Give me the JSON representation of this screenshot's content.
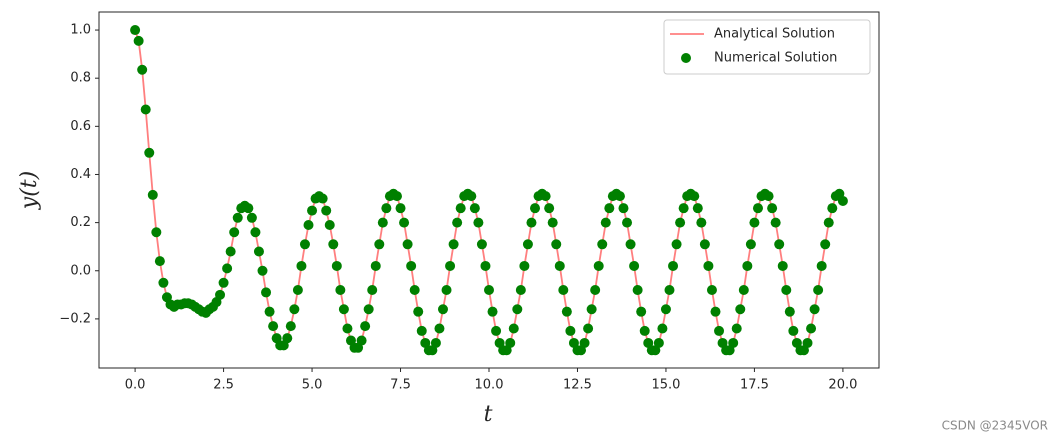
{
  "chart_data": {
    "type": "line",
    "x_label": "t",
    "y_label": "y(t)",
    "x": [
      0,
      0.1,
      0.2,
      0.3,
      0.4,
      0.5,
      0.6,
      0.7,
      0.8,
      0.9,
      1,
      1.1,
      1.2,
      1.3,
      1.4,
      1.5,
      1.6,
      1.7,
      1.8,
      1.9,
      2,
      2.1,
      2.2,
      2.3,
      2.4,
      2.5,
      2.6,
      2.7,
      2.8,
      2.9,
      3,
      3.1,
      3.2,
      3.3,
      3.4,
      3.5,
      3.6,
      3.7,
      3.8,
      3.9,
      4,
      4.1,
      4.2,
      4.3,
      4.4,
      4.5,
      4.6,
      4.7,
      4.8,
      4.9,
      5,
      5.1,
      5.2,
      5.3,
      5.4,
      5.5,
      5.6,
      5.7,
      5.8,
      5.9,
      6,
      6.1,
      6.2,
      6.3,
      6.4,
      6.5,
      6.6,
      6.7,
      6.8,
      6.9,
      7,
      7.1,
      7.2,
      7.3,
      7.4,
      7.5,
      7.6,
      7.7,
      7.8,
      7.9,
      8,
      8.1,
      8.2,
      8.3,
      8.4,
      8.5,
      8.6,
      8.7,
      8.8,
      8.9,
      9,
      9.1,
      9.2,
      9.3,
      9.4,
      9.5,
      9.6,
      9.7,
      9.8,
      9.9,
      10,
      10.1,
      10.2,
      10.3,
      10.4,
      10.5,
      10.6,
      10.7,
      10.8,
      10.9,
      11,
      11.1,
      11.2,
      11.3,
      11.4,
      11.5,
      11.6,
      11.7,
      11.8,
      11.9,
      12,
      12.1,
      12.2,
      12.3,
      12.4,
      12.5,
      12.6,
      12.7,
      12.8,
      12.9,
      13,
      13.1,
      13.2,
      13.3,
      13.4,
      13.5,
      13.6,
      13.7,
      13.8,
      13.9,
      14,
      14.1,
      14.2,
      14.3,
      14.4,
      14.5,
      14.6,
      14.7,
      14.8,
      14.9,
      15,
      15.1,
      15.2,
      15.3,
      15.4,
      15.5,
      15.6,
      15.7,
      15.8,
      15.9,
      16,
      16.1,
      16.2,
      16.3,
      16.4,
      16.5,
      16.6,
      16.7,
      16.8,
      16.9,
      17,
      17.1,
      17.2,
      17.3,
      17.4,
      17.5,
      17.6,
      17.7,
      17.8,
      17.9,
      18,
      18.1,
      18.2,
      18.3,
      18.4,
      18.5,
      18.6,
      18.7,
      18.8,
      18.9,
      19,
      19.1,
      19.2,
      19.3,
      19.4,
      19.5,
      19.6,
      19.7,
      19.8,
      19.9,
      20
    ],
    "series": [
      {
        "name": "Analytical Solution",
        "type": "line",
        "color": "#ff7f7f",
        "values": [
          1.0,
          0.955,
          0.835,
          0.67,
          0.49,
          0.315,
          0.16,
          0.04,
          -0.05,
          -0.11,
          -0.14,
          -0.15,
          -0.14,
          -0.14,
          -0.135,
          -0.135,
          -0.14,
          -0.15,
          -0.16,
          -0.17,
          -0.175,
          -0.16,
          -0.15,
          -0.13,
          -0.1,
          -0.05,
          0.01,
          0.08,
          0.16,
          0.22,
          0.26,
          0.27,
          0.26,
          0.22,
          0.16,
          0.08,
          0.0,
          -0.09,
          -0.17,
          -0.23,
          -0.28,
          -0.31,
          -0.31,
          -0.28,
          -0.23,
          -0.16,
          -0.08,
          0.02,
          0.11,
          0.19,
          0.25,
          0.3,
          0.31,
          0.3,
          0.25,
          0.19,
          0.11,
          0.02,
          -0.08,
          -0.16,
          -0.24,
          -0.29,
          -0.32,
          -0.32,
          -0.29,
          -0.23,
          -0.16,
          -0.08,
          0.02,
          0.11,
          0.2,
          0.26,
          0.31,
          0.32,
          0.31,
          0.26,
          0.2,
          0.11,
          0.02,
          -0.08,
          -0.17,
          -0.25,
          -0.3,
          -0.33,
          -0.33,
          -0.3,
          -0.24,
          -0.16,
          -0.08,
          0.02,
          0.11,
          0.2,
          0.26,
          0.31,
          0.32,
          0.31,
          0.26,
          0.2,
          0.11,
          0.02,
          -0.08,
          -0.17,
          -0.25,
          -0.3,
          -0.33,
          -0.33,
          -0.3,
          -0.24,
          -0.16,
          -0.08,
          0.02,
          0.11,
          0.2,
          0.26,
          0.31,
          0.32,
          0.31,
          0.26,
          0.2,
          0.11,
          0.02,
          -0.08,
          -0.17,
          -0.25,
          -0.3,
          -0.33,
          -0.33,
          -0.3,
          -0.24,
          -0.16,
          -0.08,
          0.02,
          0.11,
          0.2,
          0.26,
          0.31,
          0.32,
          0.31,
          0.26,
          0.2,
          0.11,
          0.02,
          -0.08,
          -0.17,
          -0.25,
          -0.3,
          -0.33,
          -0.33,
          -0.3,
          -0.24,
          -0.16,
          -0.08,
          0.02,
          0.11,
          0.2,
          0.26,
          0.31,
          0.32,
          0.31,
          0.26,
          0.2,
          0.11,
          0.02,
          -0.08,
          -0.17,
          -0.25,
          -0.3,
          -0.33,
          -0.33,
          -0.3,
          -0.24,
          -0.16,
          -0.08,
          0.02,
          0.11,
          0.2,
          0.26,
          0.31,
          0.32,
          0.31,
          0.26,
          0.2,
          0.11,
          0.02,
          -0.08,
          -0.17,
          -0.25,
          -0.3,
          -0.33,
          -0.33,
          -0.3,
          -0.24,
          -0.16,
          -0.08,
          0.02,
          0.11,
          0.2,
          0.26,
          0.31,
          0.32,
          0.29
        ]
      },
      {
        "name": "Numerical Solution",
        "type": "scatter",
        "color": "#008000",
        "values": [
          1.0,
          0.955,
          0.835,
          0.67,
          0.49,
          0.315,
          0.16,
          0.04,
          -0.05,
          -0.11,
          -0.14,
          -0.15,
          -0.14,
          -0.14,
          -0.135,
          -0.135,
          -0.14,
          -0.15,
          -0.16,
          -0.17,
          -0.175,
          -0.16,
          -0.15,
          -0.13,
          -0.1,
          -0.05,
          0.01,
          0.08,
          0.16,
          0.22,
          0.26,
          0.27,
          0.26,
          0.22,
          0.16,
          0.08,
          0.0,
          -0.09,
          -0.17,
          -0.23,
          -0.28,
          -0.31,
          -0.31,
          -0.28,
          -0.23,
          -0.16,
          -0.08,
          0.02,
          0.11,
          0.19,
          0.25,
          0.3,
          0.31,
          0.3,
          0.25,
          0.19,
          0.11,
          0.02,
          -0.08,
          -0.16,
          -0.24,
          -0.29,
          -0.32,
          -0.32,
          -0.29,
          -0.23,
          -0.16,
          -0.08,
          0.02,
          0.11,
          0.2,
          0.26,
          0.31,
          0.32,
          0.31,
          0.26,
          0.2,
          0.11,
          0.02,
          -0.08,
          -0.17,
          -0.25,
          -0.3,
          -0.33,
          -0.33,
          -0.3,
          -0.24,
          -0.16,
          -0.08,
          0.02,
          0.11,
          0.2,
          0.26,
          0.31,
          0.32,
          0.31,
          0.26,
          0.2,
          0.11,
          0.02,
          -0.08,
          -0.17,
          -0.25,
          -0.3,
          -0.33,
          -0.33,
          -0.3,
          -0.24,
          -0.16,
          -0.08,
          0.02,
          0.11,
          0.2,
          0.26,
          0.31,
          0.32,
          0.31,
          0.26,
          0.2,
          0.11,
          0.02,
          -0.08,
          -0.17,
          -0.25,
          -0.3,
          -0.33,
          -0.33,
          -0.3,
          -0.24,
          -0.16,
          -0.08,
          0.02,
          0.11,
          0.2,
          0.26,
          0.31,
          0.32,
          0.31,
          0.26,
          0.2,
          0.11,
          0.02,
          -0.08,
          -0.17,
          -0.25,
          -0.3,
          -0.33,
          -0.33,
          -0.3,
          -0.24,
          -0.16,
          -0.08,
          0.02,
          0.11,
          0.2,
          0.26,
          0.31,
          0.32,
          0.31,
          0.26,
          0.2,
          0.11,
          0.02,
          -0.08,
          -0.17,
          -0.25,
          -0.3,
          -0.33,
          -0.33,
          -0.3,
          -0.24,
          -0.16,
          -0.08,
          0.02,
          0.11,
          0.2,
          0.26,
          0.31,
          0.32,
          0.31,
          0.26,
          0.2,
          0.11,
          0.02,
          -0.08,
          -0.17,
          -0.25,
          -0.3,
          -0.33,
          -0.33,
          -0.3,
          -0.24,
          -0.16,
          -0.08,
          0.02,
          0.11,
          0.2,
          0.26,
          0.31,
          0.32,
          0.29
        ]
      }
    ],
    "xlim": [
      -1.02,
      21.02
    ],
    "ylim": [
      -0.404,
      1.075
    ],
    "xticks": [
      {
        "value": 0,
        "label": "0.0"
      },
      2.5,
      {
        "value": 5,
        "label": "5.0"
      },
      7.5,
      {
        "value": 10,
        "label": "10.0"
      },
      12.5,
      {
        "value": 15,
        "label": "15.0"
      },
      17.5,
      {
        "value": 20,
        "label": "20.0"
      }
    ],
    "yticks": [
      {
        "value": -0.2,
        "label": "−0.2"
      },
      {
        "value": 0,
        "label": "0.0"
      },
      0.2,
      0.4,
      0.6,
      0.8,
      {
        "value": 1,
        "label": "1.0"
      }
    ],
    "grid": false,
    "legend": "upper right"
  },
  "watermark": "CSDN @2345VOR"
}
